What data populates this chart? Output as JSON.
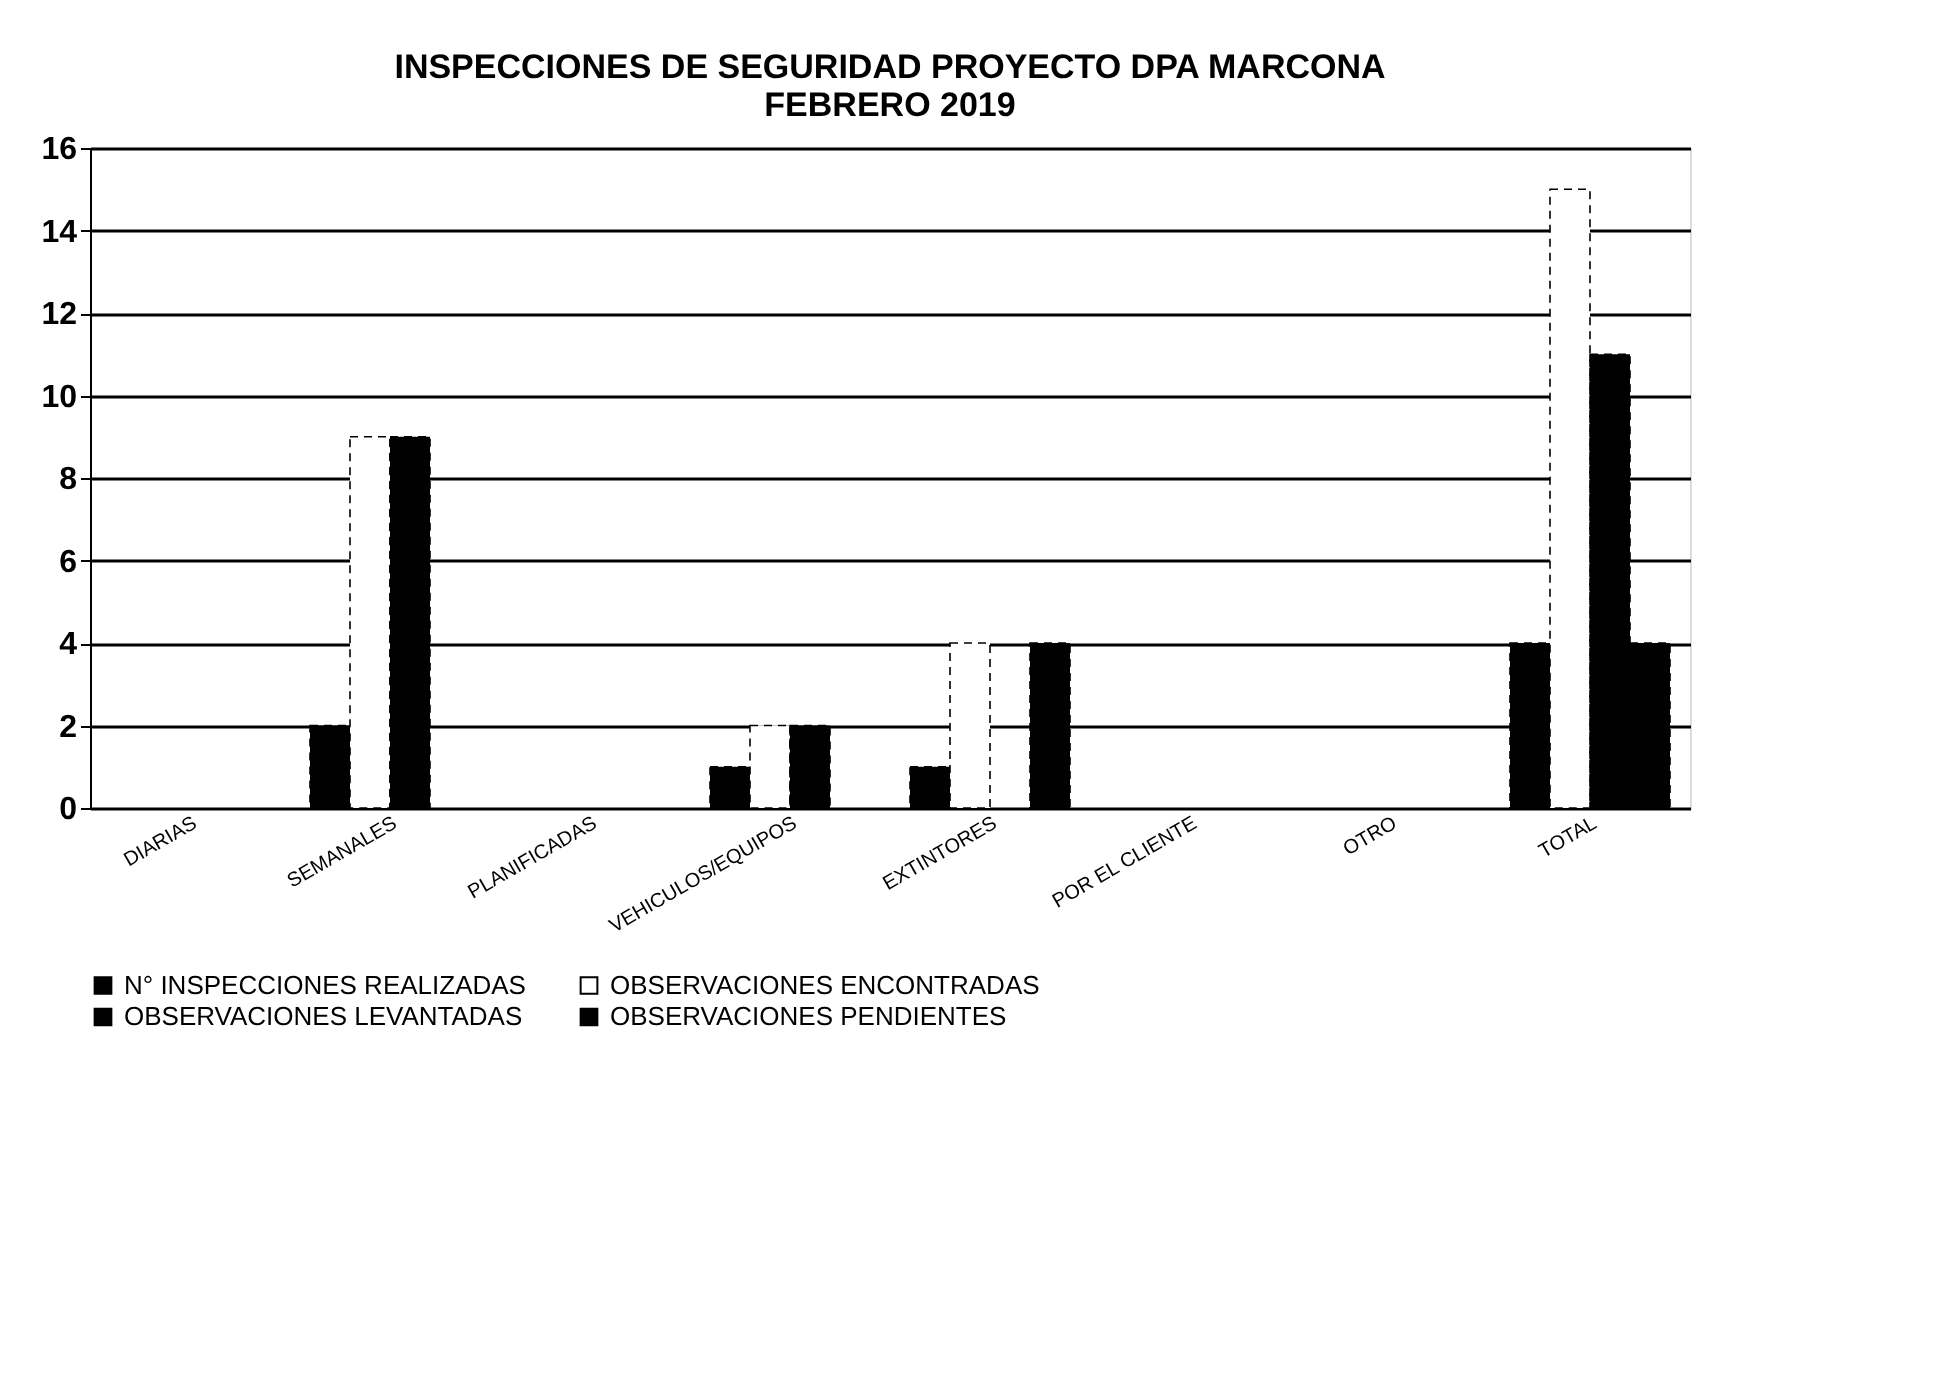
{
  "chart_data": {
    "type": "bar",
    "title": [
      "INSPECCIONES  DE SEGURIDAD  PROYECTO DPA MARCONA",
      "FEBRERO 2019"
    ],
    "categories": [
      "DIARIAS",
      "SEMANALES",
      "PLANIFICADAS",
      "VEHICULOS/EQUIPOS",
      "EXTINTORES",
      "POR EL CLIENTE",
      "OTRO",
      "TOTAL"
    ],
    "series": [
      {
        "name": "N° INSPECCIONES REALIZADAS",
        "color": "#000000",
        "values": [
          0,
          2,
          0,
          1,
          1,
          0,
          0,
          4
        ]
      },
      {
        "name": "OBSERVACIONES ENCONTRADAS",
        "color": "#ffffff",
        "values": [
          0,
          9,
          0,
          2,
          4,
          0,
          0,
          15
        ]
      },
      {
        "name": "OBSERVACIONES LEVANTADAS",
        "color": "#000000",
        "values": [
          0,
          9,
          0,
          2,
          0,
          0,
          0,
          11
        ]
      },
      {
        "name": "OBSERVACIONES PENDIENTES",
        "color": "#000000",
        "values": [
          0,
          0,
          0,
          0,
          4,
          0,
          0,
          4
        ]
      }
    ],
    "ylim": [
      0,
      16
    ],
    "yticks": [
      0,
      2,
      4,
      6,
      8,
      10,
      12,
      14,
      16
    ],
    "grid": "y",
    "legend": "bottom"
  }
}
